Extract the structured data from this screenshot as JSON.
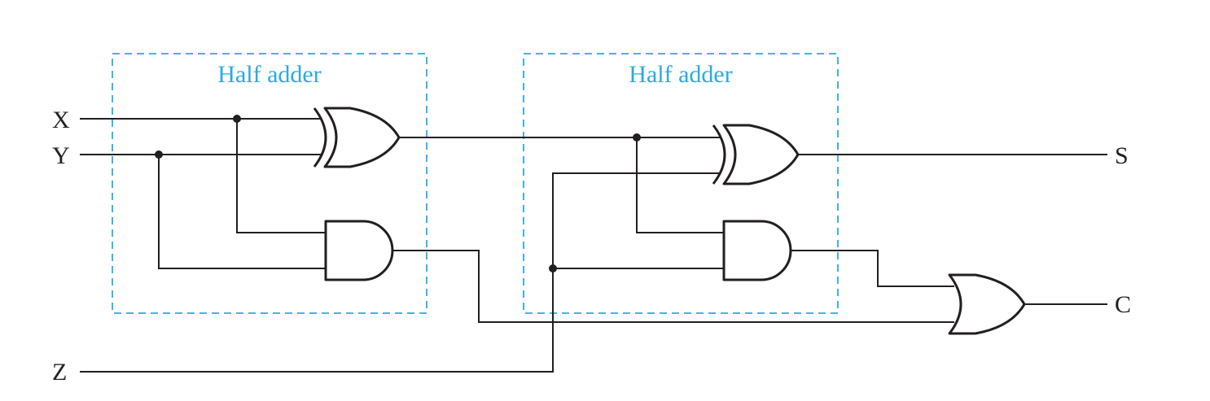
{
  "diagram": {
    "inputs": {
      "x": "X",
      "y": "Y",
      "z": "Z"
    },
    "outputs": {
      "s": "S",
      "c": "C"
    },
    "half_adders": [
      {
        "label": "Half adder"
      },
      {
        "label": "Half adder"
      }
    ],
    "gates": {
      "half_adder_1": [
        "xor",
        "and"
      ],
      "half_adder_2": [
        "xor",
        "and"
      ],
      "carry": "or"
    }
  },
  "colors": {
    "wire": "#231f20",
    "box_accent": "#29abe2"
  }
}
